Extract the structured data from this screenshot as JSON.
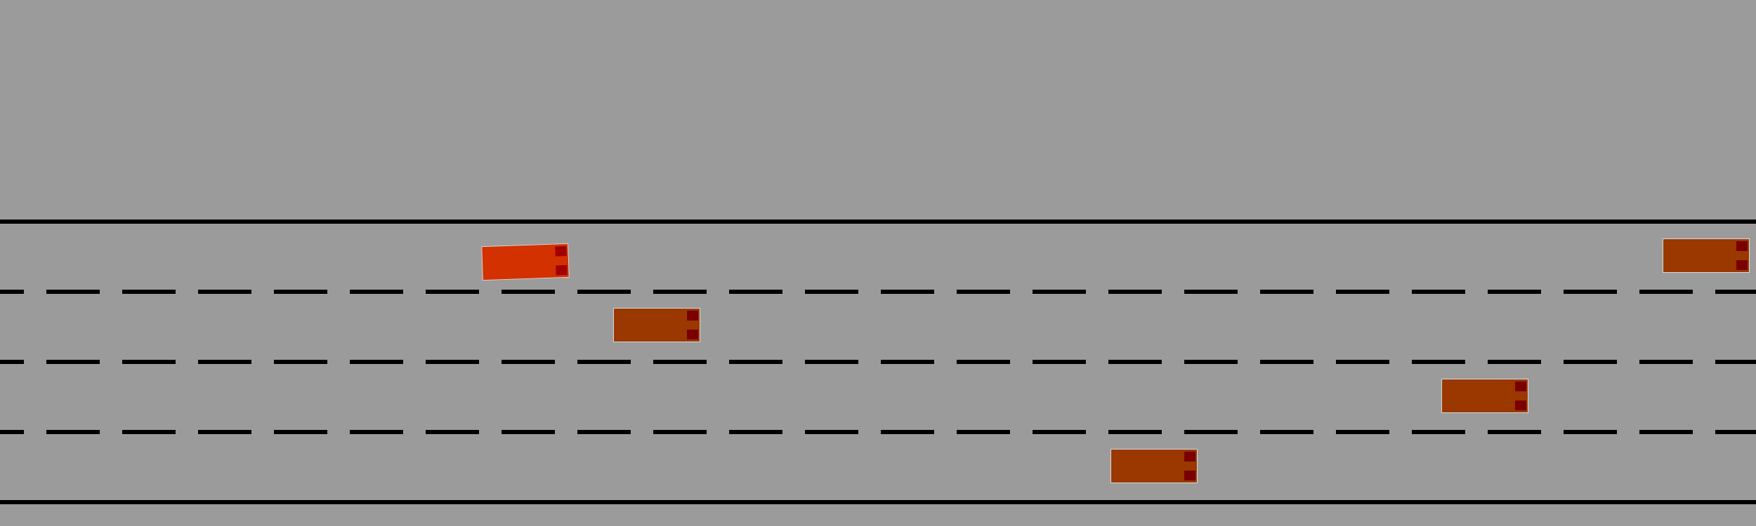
{
  "scene": {
    "background_color": "#9b9b9b",
    "road_line_color": "#000000",
    "lane_count": 4,
    "ego_color": "#d33100",
    "other_color": "#9a3800",
    "taillight_color": "#7a0000"
  },
  "vehicles": [
    {
      "id": "ego",
      "role": "controlled-vehicle",
      "lane": 1
    },
    {
      "id": "v1",
      "role": "traffic-vehicle",
      "lane": 2
    },
    {
      "id": "v2",
      "role": "traffic-vehicle",
      "lane": 1
    },
    {
      "id": "v3",
      "role": "traffic-vehicle",
      "lane": 3
    },
    {
      "id": "v4",
      "role": "traffic-vehicle",
      "lane": 4
    }
  ]
}
